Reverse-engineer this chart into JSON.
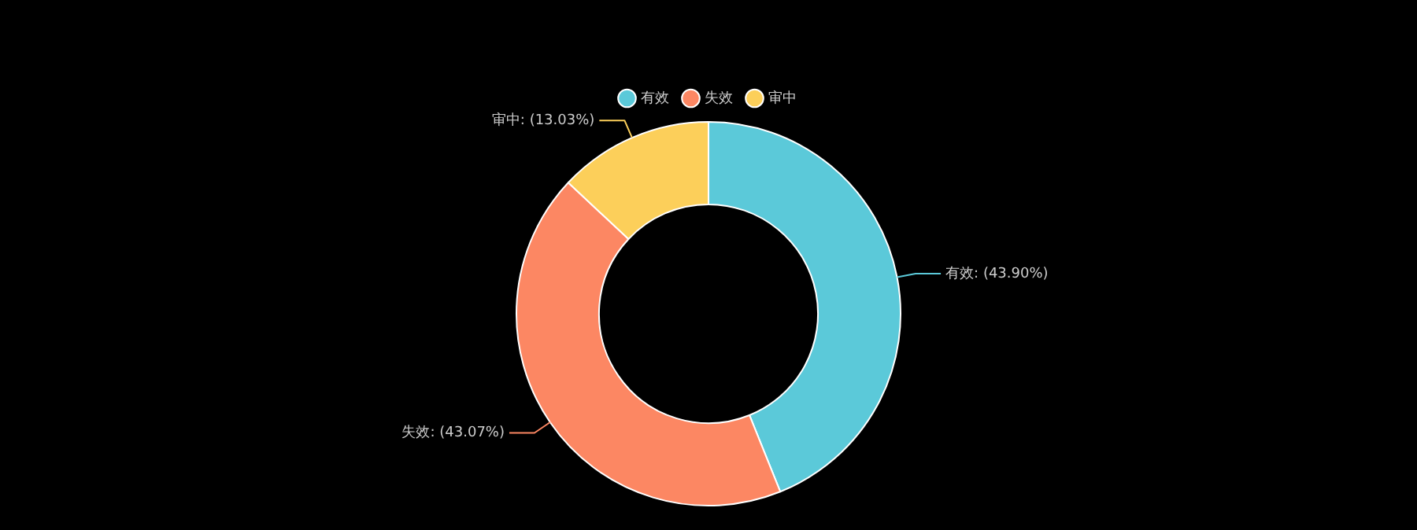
{
  "chart_data": {
    "type": "donut",
    "categories": [
      "有效",
      "失效",
      "审中"
    ],
    "values": [
      43.9,
      43.07,
      13.03
    ],
    "value_labels": [
      "有效: (43.90%)",
      "失效: (43.07%)",
      "审中: (13.03%)"
    ],
    "colors": [
      "#5bc9d9",
      "#fc8763",
      "#fccf5a"
    ],
    "legend": "top"
  }
}
